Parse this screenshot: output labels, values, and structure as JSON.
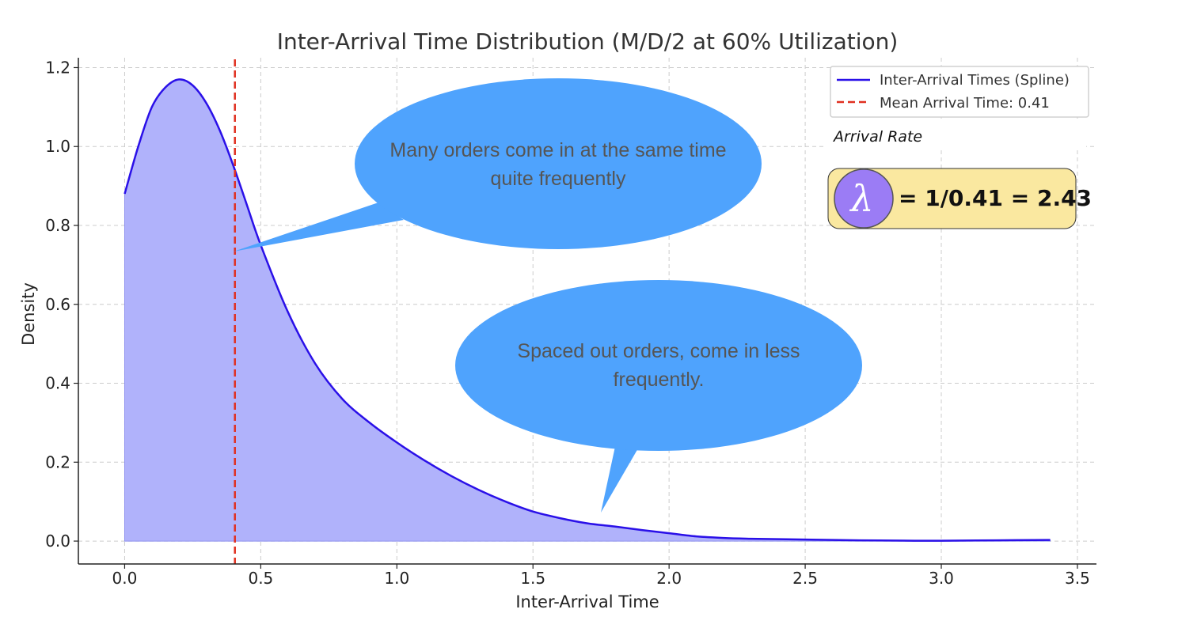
{
  "chart_data": {
    "type": "area",
    "title": "Inter-Arrival Time Distribution (M/D/2 at 60% Utilization)",
    "xlabel": "Inter-Arrival Time",
    "ylabel": "Density",
    "xlim": [
      -0.17,
      3.57
    ],
    "ylim": [
      -0.058,
      1.225
    ],
    "xticks": [
      0.0,
      0.5,
      1.0,
      1.5,
      2.0,
      2.5,
      3.0,
      3.5
    ],
    "xtick_labels": [
      "0.0",
      "0.5",
      "1.0",
      "1.5",
      "2.0",
      "2.5",
      "3.0",
      "3.5"
    ],
    "yticks": [
      0.0,
      0.2,
      0.4,
      0.6,
      0.8,
      1.0,
      1.2
    ],
    "ytick_labels": [
      "0.0",
      "0.2",
      "0.4",
      "0.6",
      "0.8",
      "1.0",
      "1.2"
    ],
    "grid": true,
    "legend_position": "upper right",
    "series": [
      {
        "name": "Inter-Arrival Times (Spline)",
        "style": "solid line with shaded area",
        "color": "#2a10e8",
        "fill_color": "#b0b2fb",
        "x": [
          0.0,
          0.05,
          0.1,
          0.15,
          0.2,
          0.25,
          0.3,
          0.35,
          0.4,
          0.45,
          0.5,
          0.6,
          0.7,
          0.8,
          0.9,
          1.0,
          1.1,
          1.2,
          1.3,
          1.4,
          1.5,
          1.6,
          1.7,
          1.8,
          1.9,
          2.0,
          2.1,
          2.2,
          2.3,
          2.5,
          2.7,
          2.9,
          3.0,
          3.2,
          3.4
        ],
        "y": [
          0.88,
          1.0,
          1.1,
          1.15,
          1.17,
          1.155,
          1.11,
          1.04,
          0.95,
          0.85,
          0.75,
          0.58,
          0.45,
          0.36,
          0.3,
          0.25,
          0.205,
          0.165,
          0.13,
          0.1,
          0.075,
          0.058,
          0.045,
          0.037,
          0.028,
          0.02,
          0.012,
          0.008,
          0.006,
          0.004,
          0.002,
          0.001,
          0.001,
          0.002,
          0.003
        ]
      },
      {
        "name": "Mean Arrival Time: 0.41",
        "style": "vertical dashed line",
        "color": "#e03020",
        "x_value": 0.405
      }
    ],
    "annotations": [
      {
        "text_lines": [
          "Many orders come in at the same time",
          "quite frequently"
        ],
        "pointer_x": 0.405,
        "pointer_y": 0.74
      },
      {
        "text_lines": [
          "Spaced out orders, come in less",
          "frequently."
        ],
        "pointer_x": 1.75,
        "pointer_y": 0.075
      }
    ]
  },
  "note": {
    "label": "Arrival Rate",
    "symbol": "λ",
    "formula": "= 1/0.41 = 2.43",
    "box_color": "#fae8a0",
    "circle_color": "#9b7cf5"
  },
  "colors": {
    "bubble": "#4fa3fd",
    "grid": "#cccccc",
    "axis": "#222222"
  }
}
